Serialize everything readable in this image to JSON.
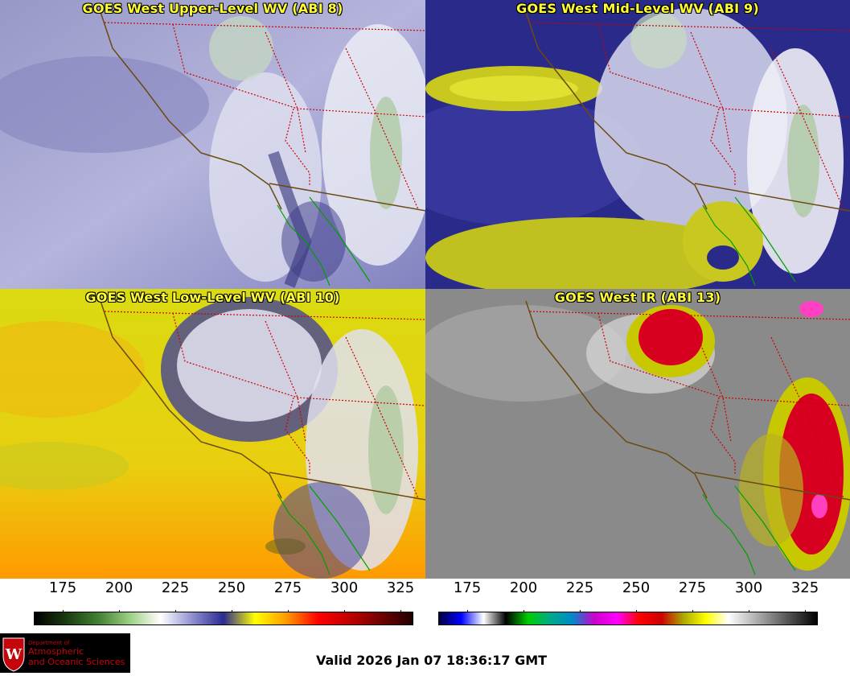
{
  "panels": [
    {
      "id": "upper",
      "title": "GOES West Upper-Level WV (ABI 8)"
    },
    {
      "id": "mid",
      "title": "GOES West Mid-Level WV (ABI 9)"
    },
    {
      "id": "low",
      "title": "GOES West Low-Level WV (ABI 10)"
    },
    {
      "id": "ir",
      "title": "GOES West IR (ABI 13)"
    }
  ],
  "colorbars": {
    "wv": {
      "ticks": [
        "175",
        "200",
        "225",
        "250",
        "275",
        "300",
        "325"
      ],
      "colors": [
        "#000000",
        "#1a3a10",
        "#3f7f30",
        "#9acd80",
        "#ffffff",
        "#9090d0",
        "#2a2a90",
        "#ffff00",
        "#ff9900",
        "#ff0000",
        "#c00000",
        "#700000",
        "#200000"
      ]
    },
    "ir": {
      "ticks": [
        "175",
        "200",
        "225",
        "250",
        "275",
        "300",
        "325"
      ],
      "colors": [
        "#000040",
        "#0000ff",
        "#ffffff",
        "#000000",
        "#00cc00",
        "#00aa88",
        "#0088cc",
        "#cc00cc",
        "#ff00ff",
        "#ff0000",
        "#cc0000",
        "#aaaa00",
        "#ffff00",
        "#ffffff",
        "#c0c0c0",
        "#808080",
        "#404040",
        "#000000"
      ]
    }
  },
  "logo": {
    "line1": "Department of",
    "line2": "Atmospheric",
    "line3": "and Oceanic Sciences",
    "crest": "W"
  },
  "footer": {
    "valid_text": "Valid 2026 Jan 07 18:36:17 GMT"
  },
  "colors": {
    "title": "#ffff33",
    "coast": "#6b4a10",
    "border": "#cc0000",
    "mexico_coast": "#00a000"
  }
}
